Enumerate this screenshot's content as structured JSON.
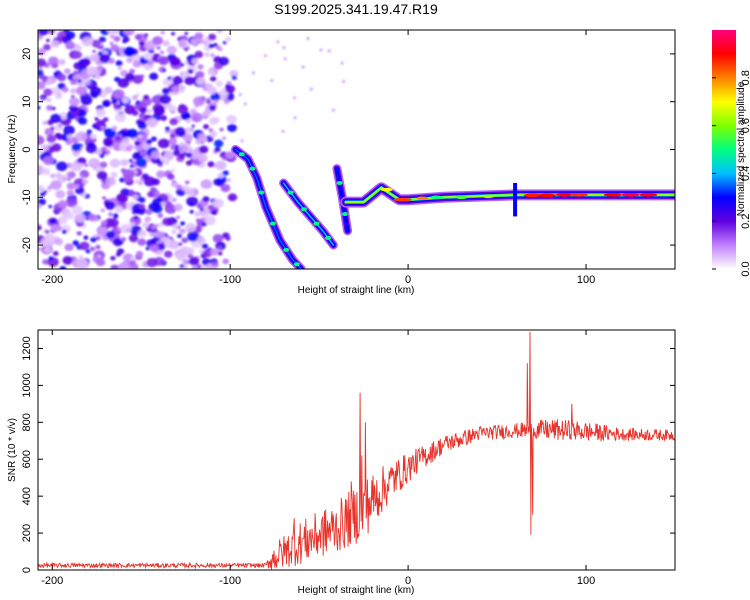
{
  "title": "S199.2025.341.19.47.R19",
  "chart_data": [
    {
      "type": "heatmap",
      "title": "S199.2025.341.19.47.R19",
      "xlabel": "Height of straight line (km)",
      "ylabel": "Frequency (Hz)",
      "xlim": [
        -208,
        150
      ],
      "ylim": [
        -25,
        25
      ],
      "xticks": [
        -200,
        -100,
        0,
        100
      ],
      "xtick_labels": [
        "-200",
        "-100",
        "0",
        "100"
      ],
      "yticks": [
        -20,
        -10,
        0,
        10,
        20
      ],
      "ytick_labels": [
        "-20",
        "-10",
        "0",
        "10",
        "20"
      ],
      "colorbar": {
        "label": "Normalized spectral amplitude",
        "range": [
          0,
          1
        ],
        "ticks": [
          0.0,
          0.2,
          0.4,
          0.6,
          0.8
        ],
        "tick_labels": [
          "0.0",
          "0.2",
          "0.4",
          "0.6",
          "0.8"
        ],
        "colors": [
          "#ffffff",
          "#c080ff",
          "#6000e0",
          "#0000ff",
          "#00c0ff",
          "#00ff80",
          "#80ff00",
          "#ffff00",
          "#ff8000",
          "#ff0000",
          "#ff0080"
        ]
      },
      "features": [
        {
          "name": "noise region",
          "x_range": [
            -208,
            -95
          ],
          "f_range": [
            -25,
            25
          ],
          "amplitude": 0.15
        },
        {
          "name": "descending trace A",
          "points": [
            [
              -97,
              0
            ],
            [
              -90,
              -2
            ],
            [
              -85,
              -6
            ],
            [
              -80,
              -12
            ],
            [
              -72,
              -19
            ],
            [
              -65,
              -23
            ],
            [
              -60,
              -25
            ]
          ],
          "amplitude": 0.35
        },
        {
          "name": "descending trace B",
          "points": [
            [
              -70,
              -7
            ],
            [
              -62,
              -11
            ],
            [
              -55,
              -14
            ],
            [
              -48,
              -17
            ],
            [
              -42,
              -20
            ]
          ],
          "amplitude": 0.4
        },
        {
          "name": "descending trace C",
          "points": [
            [
              -40,
              -4
            ],
            [
              -37,
              -10
            ],
            [
              -34,
              -17
            ]
          ],
          "amplitude": 0.3
        },
        {
          "name": "main tone",
          "points": [
            [
              -35,
              -11
            ],
            [
              -25,
              -11
            ],
            [
              -15,
              -8
            ],
            [
              -5,
              -10.5
            ],
            [
              0,
              -10.5
            ],
            [
              20,
              -10
            ],
            [
              60,
              -9.5
            ],
            [
              100,
              -9.5
            ],
            [
              150,
              -9.5
            ]
          ],
          "amplitude": 0.9
        }
      ]
    },
    {
      "type": "line",
      "xlabel": "Height of straight line (km)",
      "ylabel": "SNR (10 * v/v)",
      "xlim": [
        -208,
        150
      ],
      "ylim": [
        0,
        1300
      ],
      "xticks": [
        -200,
        -100,
        0,
        100
      ],
      "xtick_labels": [
        "-200",
        "-100",
        "0",
        "100"
      ],
      "yticks": [
        0,
        200,
        400,
        600,
        800,
        1000,
        1200
      ],
      "ytick_labels": [
        "0",
        "200",
        "400",
        "600",
        "800",
        "1000",
        "1200"
      ],
      "series": [
        {
          "name": "SNR",
          "color": "#e8322a",
          "envelope": [
            {
              "x": -208,
              "base": 25,
              "amp": 12
            },
            {
              "x": -80,
              "base": 25,
              "amp": 12
            },
            {
              "x": -75,
              "base": 70,
              "amp": 80
            },
            {
              "x": -60,
              "base": 150,
              "amp": 120
            },
            {
              "x": -40,
              "base": 230,
              "amp": 140
            },
            {
              "x": -25,
              "base": 330,
              "amp": 170
            },
            {
              "x": -10,
              "base": 480,
              "amp": 110
            },
            {
              "x": 5,
              "base": 590,
              "amp": 70
            },
            {
              "x": 20,
              "base": 680,
              "amp": 50
            },
            {
              "x": 40,
              "base": 740,
              "amp": 40
            },
            {
              "x": 60,
              "base": 755,
              "amp": 40
            },
            {
              "x": 80,
              "base": 760,
              "amp": 60
            },
            {
              "x": 100,
              "base": 750,
              "amp": 55
            },
            {
              "x": 120,
              "base": 735,
              "amp": 35
            },
            {
              "x": 150,
              "base": 730,
              "amp": 30
            }
          ],
          "spikes": [
            {
              "x": -64,
              "y": 280
            },
            {
              "x": -32,
              "y": 480
            },
            {
              "x": -27,
              "y": 960
            },
            {
              "x": -26,
              "y": 620
            },
            {
              "x": -24,
              "y": 800
            },
            {
              "x": 67,
              "y": 1120
            },
            {
              "x": 68.5,
              "y": 1290
            },
            {
              "x": 69,
              "y": 190
            },
            {
              "x": 70,
              "y": 300
            },
            {
              "x": 92,
              "y": 900
            }
          ]
        }
      ]
    }
  ]
}
